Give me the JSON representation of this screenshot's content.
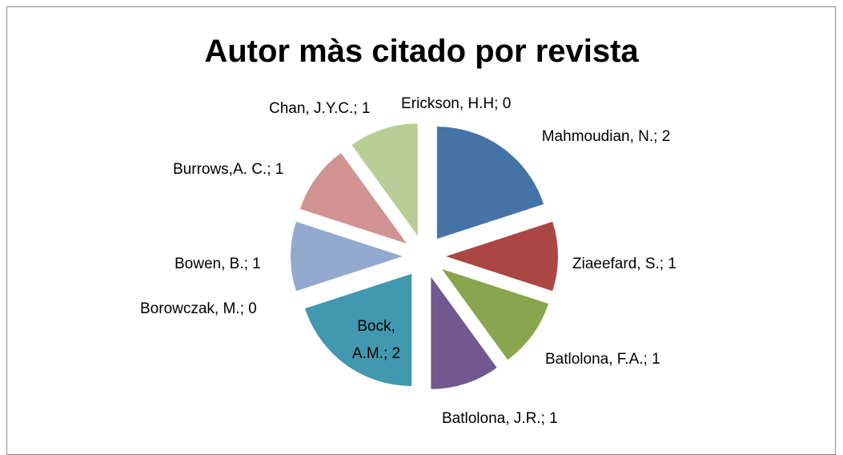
{
  "chart_data": {
    "type": "pie",
    "title": "Autor màs citado por revista",
    "values": [
      2,
      1,
      1,
      1,
      2,
      0,
      1,
      1,
      1,
      0
    ],
    "value_labels": [
      "Mahmoudian, N.; 2",
      "Ziaeefard, S.; 1",
      "Batlolona, F.A.; 1",
      "Batlolona, J.R.; 1",
      "Bock, A.M.; 2",
      "Borowczak, M.; 0",
      "Bowen, B.; 1",
      "Burrows,A. C.; 1",
      "Chan, J.Y.C.; 1",
      "Erickson, H.H; 0"
    ],
    "colors": [
      "#4572a7",
      "#aa4643",
      "#89a54e",
      "#71588f",
      "#4198af",
      "#db843d",
      "#93a9cf",
      "#d19392",
      "#b9cd96",
      "#a99bbd"
    ]
  }
}
